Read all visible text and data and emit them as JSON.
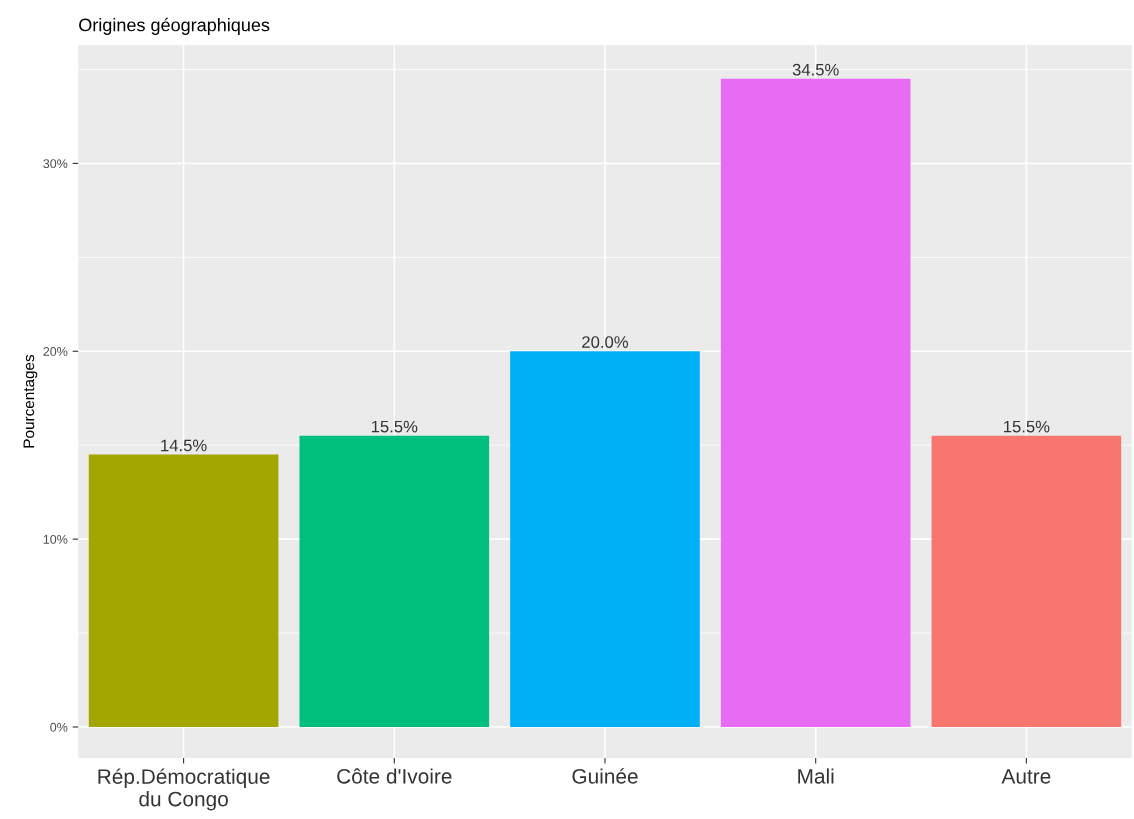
{
  "chart_data": {
    "type": "bar",
    "title": "Origines géographiques",
    "ylabel": "Pourcentages",
    "categories": [
      "Rép.Démocratique\ndu Congo",
      "Côte d'Ivoire",
      "Guinée",
      "Mali",
      "Autre"
    ],
    "values": [
      14.5,
      15.5,
      20.0,
      34.5,
      15.5
    ],
    "colors": [
      "#a3a500",
      "#00bf7d",
      "#00b0f6",
      "#e76bf3",
      "#f8766d"
    ],
    "value_labels": [
      "14.5%",
      "15.5%",
      "20.0%",
      "34.5%",
      "15.5%"
    ],
    "ylim": [
      -1.65,
      36.3
    ],
    "yticks": [
      {
        "value": 0,
        "label": "0%"
      },
      {
        "value": 5,
        "label": null
      },
      {
        "value": 10,
        "label": "10%"
      },
      {
        "value": 15,
        "label": null
      },
      {
        "value": 20,
        "label": "20%"
      },
      {
        "value": 25,
        "label": null
      },
      {
        "value": 30,
        "label": "30%"
      },
      {
        "value": 35,
        "label": null
      }
    ],
    "grid": true,
    "legend": false
  }
}
